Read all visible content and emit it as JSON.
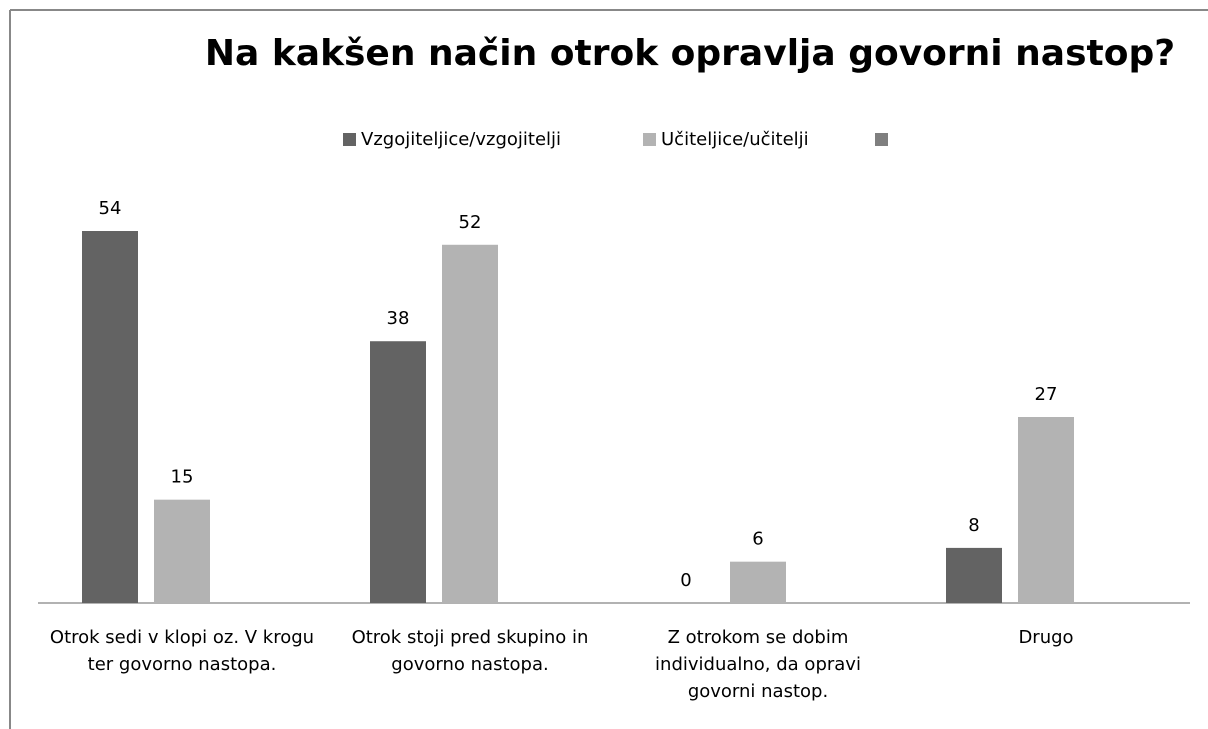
{
  "chart_data": {
    "type": "bar",
    "title": "Na kakšen način otrok opravlja govorni nastop?",
    "categories": [
      "Otrok sedi v klopi oz.  V krogu ter govorno nastopa.",
      "Otrok stoji pred skupino in govorno nastopa.",
      "Z otrokom se dobim individualno, da opravi govorni nastop.",
      "Drugo"
    ],
    "series": [
      {
        "name": "Vzgojiteljice/vzgojitelji",
        "color": "#636363",
        "values": [
          54,
          38,
          0,
          8
        ]
      },
      {
        "name": "Učiteljice/učitelji",
        "color": "#b3b3b3",
        "values": [
          15,
          52,
          6,
          27
        ]
      }
    ]
  }
}
